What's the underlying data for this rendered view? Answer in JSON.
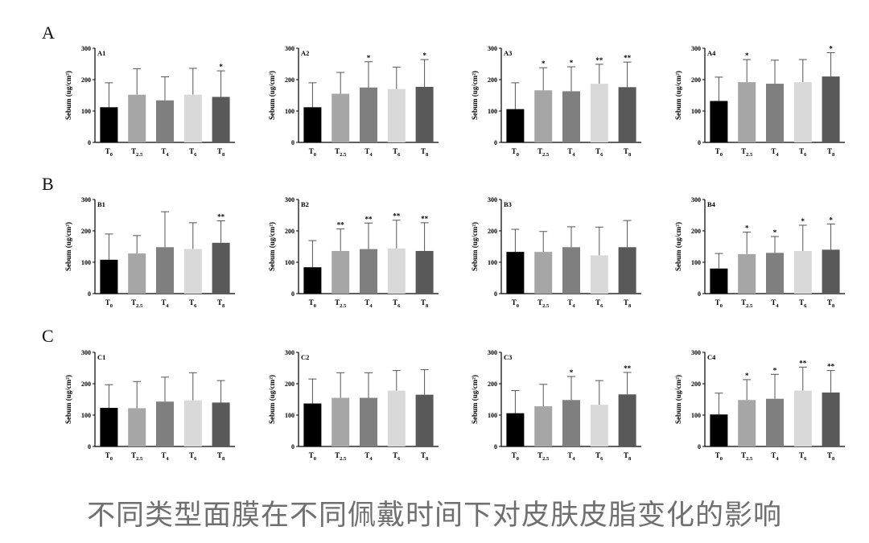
{
  "caption": "不同类型面膜在不同佩戴时间下对皮肤皮脂变化的影响",
  "rows": [
    {
      "letter": "A"
    },
    {
      "letter": "B"
    },
    {
      "letter": "C"
    }
  ],
  "bar_colors": [
    "#000000",
    "#a6a6a6",
    "#7f7f7f",
    "#d9d9d9",
    "#595959"
  ],
  "chart_data": [
    {
      "type": "bar",
      "id": "A1",
      "categories": [
        "T0",
        "T2.5",
        "T4",
        "T6",
        "T8"
      ],
      "values": [
        112,
        152,
        134,
        152,
        145
      ],
      "errors": [
        78,
        83,
        75,
        84,
        83
      ],
      "sig": [
        "",
        "",
        "",
        "",
        "*"
      ],
      "ylabel": "Sebum (ug/cm²)",
      "ylim": [
        0,
        300
      ],
      "yticks": [
        0,
        100,
        200,
        300
      ]
    },
    {
      "type": "bar",
      "id": "A2",
      "categories": [
        "T0",
        "T2.5",
        "T4",
        "T6",
        "T8"
      ],
      "values": [
        112,
        155,
        175,
        170,
        177
      ],
      "errors": [
        78,
        68,
        82,
        70,
        87
      ],
      "sig": [
        "",
        "",
        "*",
        "",
        "*"
      ],
      "ylabel": "Sebum (ug/cm²)",
      "ylim": [
        0,
        300
      ],
      "yticks": [
        0,
        100,
        200,
        300
      ]
    },
    {
      "type": "bar",
      "id": "A3",
      "categories": [
        "T0",
        "T2.5",
        "T4",
        "T6",
        "T8"
      ],
      "values": [
        106,
        166,
        163,
        187,
        176
      ],
      "errors": [
        84,
        72,
        78,
        62,
        80
      ],
      "sig": [
        "",
        "*",
        "*",
        "**",
        "**"
      ],
      "ylabel": "Sebum (ug/cm²)",
      "ylim": [
        0,
        300
      ],
      "yticks": [
        0,
        100,
        200,
        300
      ]
    },
    {
      "type": "bar",
      "id": "A4",
      "categories": [
        "T0",
        "T2.5",
        "T4",
        "T6",
        "T8"
      ],
      "values": [
        132,
        192,
        187,
        192,
        210
      ],
      "errors": [
        76,
        72,
        75,
        72,
        76
      ],
      "sig": [
        "",
        "*",
        "",
        "",
        "*"
      ],
      "ylabel": "Sebum (ug/cm²)",
      "ylim": [
        0,
        300
      ],
      "yticks": [
        0,
        100,
        200,
        300
      ]
    },
    {
      "type": "bar",
      "id": "B1",
      "categories": [
        "T0",
        "T2.5",
        "T4",
        "T6",
        "T8"
      ],
      "values": [
        108,
        128,
        148,
        142,
        162
      ],
      "errors": [
        82,
        57,
        113,
        84,
        70
      ],
      "sig": [
        "",
        "",
        "",
        "",
        "**"
      ],
      "ylabel": "Sebum (ug/cm²)",
      "ylim": [
        0,
        300
      ],
      "yticks": [
        0,
        100,
        200,
        300
      ]
    },
    {
      "type": "bar",
      "id": "B2",
      "categories": [
        "T0",
        "T2.5",
        "T4",
        "T6",
        "T8"
      ],
      "values": [
        84,
        136,
        142,
        144,
        136
      ],
      "errors": [
        85,
        70,
        83,
        90,
        90
      ],
      "sig": [
        "",
        "**",
        "**",
        "**",
        "**"
      ],
      "ylabel": "Sebum (ug/cm²)",
      "ylim": [
        0,
        300
      ],
      "yticks": [
        0,
        100,
        200,
        300
      ]
    },
    {
      "type": "bar",
      "id": "B3",
      "categories": [
        "T0",
        "T2.5",
        "T4",
        "T6",
        "T8"
      ],
      "values": [
        133,
        133,
        148,
        122,
        148
      ],
      "errors": [
        72,
        65,
        65,
        90,
        85
      ],
      "sig": [
        "",
        "",
        "",
        "",
        ""
      ],
      "ylabel": "Sebum (ug/cm²)",
      "ylim": [
        0,
        300
      ],
      "yticks": [
        0,
        100,
        200,
        300
      ]
    },
    {
      "type": "bar",
      "id": "B4",
      "categories": [
        "T0",
        "T2.5",
        "T4",
        "T6",
        "T8"
      ],
      "values": [
        80,
        126,
        130,
        136,
        140
      ],
      "errors": [
        48,
        70,
        52,
        82,
        82
      ],
      "sig": [
        "",
        "*",
        "*",
        "*",
        "*"
      ],
      "ylabel": "Sebum (ug/cm²)",
      "ylim": [
        0,
        300
      ],
      "yticks": [
        0,
        100,
        200,
        300
      ]
    },
    {
      "type": "bar",
      "id": "C1",
      "categories": [
        "T0",
        "T2.5",
        "T4",
        "T6",
        "T8"
      ],
      "values": [
        123,
        122,
        143,
        147,
        140
      ],
      "errors": [
        74,
        85,
        78,
        88,
        70
      ],
      "sig": [
        "",
        "",
        "",
        "",
        ""
      ],
      "ylabel": "Sebum (ug/cm²)",
      "ylim": [
        0,
        300
      ],
      "yticks": [
        0,
        100,
        200,
        300
      ]
    },
    {
      "type": "bar",
      "id": "C2",
      "categories": [
        "T0",
        "T2.5",
        "T4",
        "T6",
        "T8"
      ],
      "values": [
        137,
        155,
        155,
        178,
        165
      ],
      "errors": [
        78,
        80,
        80,
        64,
        80
      ],
      "sig": [
        "",
        "",
        "",
        "",
        ""
      ],
      "ylabel": "Sebum (ug/cm²)",
      "ylim": [
        0,
        300
      ],
      "yticks": [
        0,
        100,
        200,
        300
      ]
    },
    {
      "type": "bar",
      "id": "C3",
      "categories": [
        "T0",
        "T2.5",
        "T4",
        "T6",
        "T8"
      ],
      "values": [
        106,
        128,
        148,
        133,
        166
      ],
      "errors": [
        72,
        70,
        75,
        77,
        70
      ],
      "sig": [
        "",
        "",
        "*",
        "",
        "**"
      ],
      "ylabel": "Sebum (ug/cm²)",
      "ylim": [
        0,
        300
      ],
      "yticks": [
        0,
        100,
        200,
        300
      ]
    },
    {
      "type": "bar",
      "id": "C4",
      "categories": [
        "T0",
        "T2.5",
        "T4",
        "T6",
        "T8"
      ],
      "values": [
        102,
        148,
        152,
        178,
        172
      ],
      "errors": [
        68,
        65,
        78,
        75,
        70
      ],
      "sig": [
        "",
        "*",
        "*",
        "**",
        "**"
      ],
      "ylabel": "Sebum (ug/cm²)",
      "ylim": [
        0,
        300
      ],
      "yticks": [
        0,
        100,
        200,
        300
      ]
    }
  ]
}
